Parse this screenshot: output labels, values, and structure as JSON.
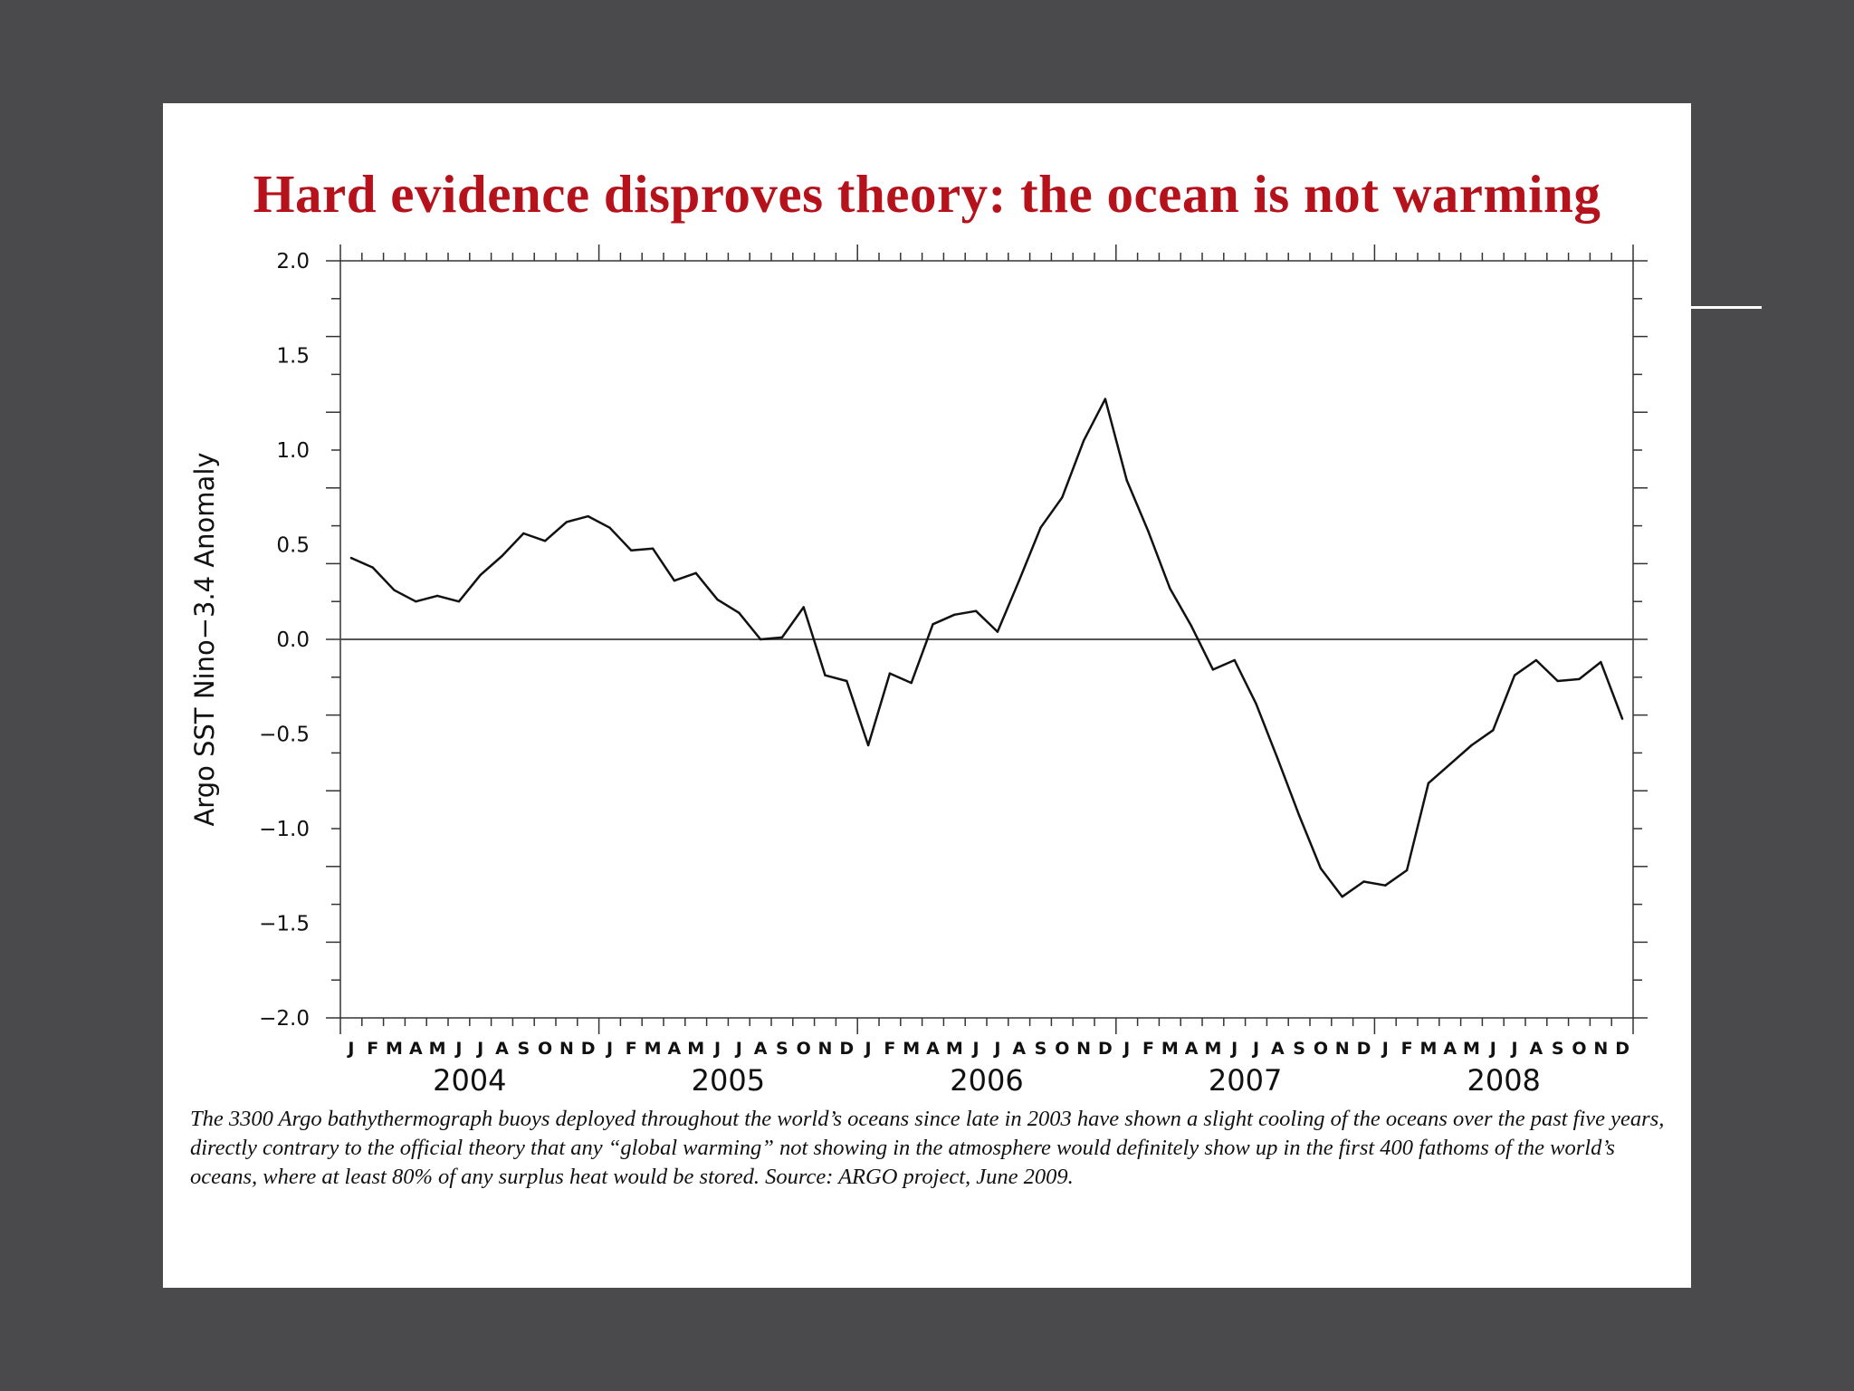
{
  "slide": {
    "title": "Hard evidence disproves theory: the ocean is not warming",
    "caption": "The 3300 Argo bathythermograph buoys deployed throughout the world’s oceans since late in 2003 have shown a slight cooling of the oceans over the past five years, directly contrary to the official theory that any “global warming” not showing in the atmosphere would definitely show up in the first 400 fathoms of the world’s oceans, where at least 80% of any surplus heat would be stored. Source: ARGO project, June 2009."
  },
  "colors": {
    "background": "#4a4a4c",
    "title": "#b5121b",
    "line": "#111111",
    "axis": "#333333"
  },
  "chart_data": {
    "type": "line",
    "title": "Hard evidence disproves theory: the ocean is not warming",
    "xlabel": "",
    "ylabel": "Argo SST Nino−3.4 Anomaly",
    "ylim": [
      -2.0,
      2.0
    ],
    "yticks": [
      2.0,
      1.5,
      1.0,
      0.5,
      0.0,
      -0.5,
      -1.0,
      -1.5,
      -2.0
    ],
    "ytick_labels": [
      "2.0",
      "1.5",
      "1.0",
      "0.5",
      "0.0",
      "−0.5",
      "−1.0",
      "−1.5",
      "−2.0"
    ],
    "years": [
      "2004",
      "2005",
      "2006",
      "2007",
      "2008"
    ],
    "month_labels": [
      "J",
      "F",
      "M",
      "A",
      "M",
      "J",
      "J",
      "A",
      "S",
      "O",
      "N",
      "D"
    ],
    "zero_line": true,
    "grid": false,
    "series": [
      {
        "name": "Argo SST Nino-3.4 Anomaly",
        "values": [
          0.43,
          0.38,
          0.26,
          0.2,
          0.23,
          0.2,
          0.34,
          0.44,
          0.56,
          0.52,
          0.62,
          0.65,
          0.59,
          0.47,
          0.48,
          0.31,
          0.35,
          0.21,
          0.14,
          0.0,
          0.01,
          0.17,
          -0.19,
          -0.22,
          -0.56,
          -0.18,
          -0.23,
          0.08,
          0.13,
          0.15,
          0.04,
          0.31,
          0.59,
          0.75,
          1.05,
          1.27,
          0.84,
          0.57,
          0.27,
          0.07,
          -0.16,
          -0.11,
          -0.34,
          -0.63,
          -0.93,
          -1.21,
          -1.36,
          -1.28,
          -1.3,
          -1.22,
          -0.76,
          -0.66,
          -0.56,
          -0.48,
          -0.19,
          -0.11,
          -0.22,
          -0.21,
          -0.12,
          -0.42
        ]
      }
    ]
  }
}
